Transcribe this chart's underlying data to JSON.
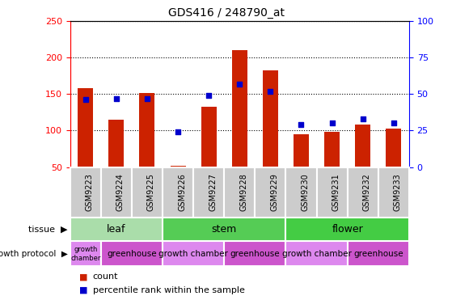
{
  "title": "GDS416 / 248790_at",
  "samples": [
    "GSM9223",
    "GSM9224",
    "GSM9225",
    "GSM9226",
    "GSM9227",
    "GSM9228",
    "GSM9229",
    "GSM9230",
    "GSM9231",
    "GSM9232",
    "GSM9233"
  ],
  "counts": [
    158,
    115,
    151,
    52,
    133,
    210,
    182,
    95,
    98,
    108,
    103
  ],
  "percentiles": [
    46,
    47,
    47,
    24,
    49,
    57,
    52,
    29,
    30,
    33,
    30
  ],
  "ylim_left": [
    50,
    250
  ],
  "ylim_right": [
    0,
    100
  ],
  "yticks_left": [
    50,
    100,
    150,
    200,
    250
  ],
  "yticks_right": [
    0,
    25,
    50,
    75,
    100
  ],
  "bar_color": "#cc2200",
  "scatter_color": "#0000cc",
  "tissue_groups": [
    {
      "label": "leaf",
      "start": 0,
      "end": 3,
      "color": "#aaddaa"
    },
    {
      "label": "stem",
      "start": 3,
      "end": 7,
      "color": "#55cc55"
    },
    {
      "label": "flower",
      "start": 7,
      "end": 11,
      "color": "#44cc44"
    }
  ],
  "protocol_groups": [
    {
      "label": "growth\nchamber",
      "start": 0,
      "end": 1,
      "color": "#dd88ee"
    },
    {
      "label": "greenhouse",
      "start": 1,
      "end": 3,
      "color": "#cc55cc"
    },
    {
      "label": "growth chamber",
      "start": 3,
      "end": 5,
      "color": "#dd88ee"
    },
    {
      "label": "greenhouse",
      "start": 5,
      "end": 7,
      "color": "#cc55cc"
    },
    {
      "label": "growth chamber",
      "start": 7,
      "end": 9,
      "color": "#dd88ee"
    },
    {
      "label": "greenhouse",
      "start": 9,
      "end": 11,
      "color": "#cc55cc"
    }
  ],
  "tissue_label": "tissue",
  "protocol_label": "growth protocol",
  "legend_count": "count",
  "legend_percentile": "percentile rank within the sample",
  "sample_bg": "#cccccc",
  "fig_bg": "#ffffff"
}
